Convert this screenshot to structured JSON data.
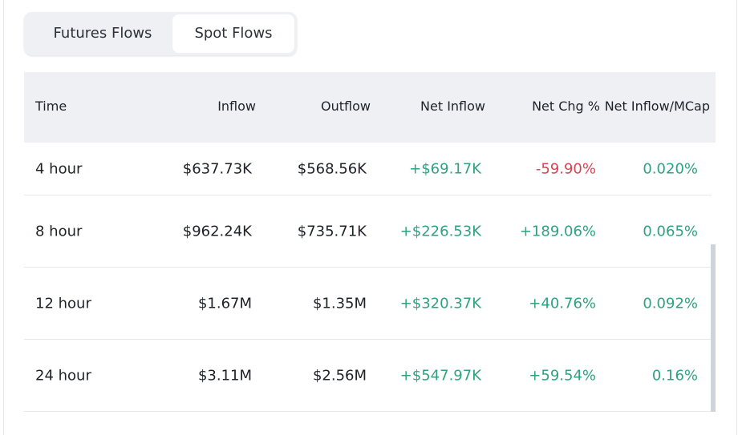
{
  "tabs": [
    {
      "label": "Futures Flows",
      "active": false
    },
    {
      "label": "Spot Flows",
      "active": true
    }
  ],
  "table": {
    "headers": [
      "Time",
      "Inflow",
      "Outflow",
      "Net Inflow",
      "Net Chg %",
      "Net Inflow/MCap"
    ],
    "rows": [
      [
        "4 hour",
        "$637.73K",
        "$568.56K",
        "+$69.17K",
        "-59.90%",
        "0.020%"
      ],
      [
        "8 hour",
        "$962.24K",
        "$735.71K",
        "+$226.53K",
        "+189.06%",
        "0.065%"
      ],
      [
        "12 hour",
        "$1.67M",
        "$1.35M",
        "+$320.37K",
        "+40.76%",
        "0.092%"
      ],
      [
        "24 hour",
        "$3.11M",
        "$2.56M",
        "+$547.97K",
        "+59.54%",
        "0.16%"
      ]
    ]
  },
  "colors": {
    "positive": "#2ea281",
    "negative": "#d9434f"
  }
}
